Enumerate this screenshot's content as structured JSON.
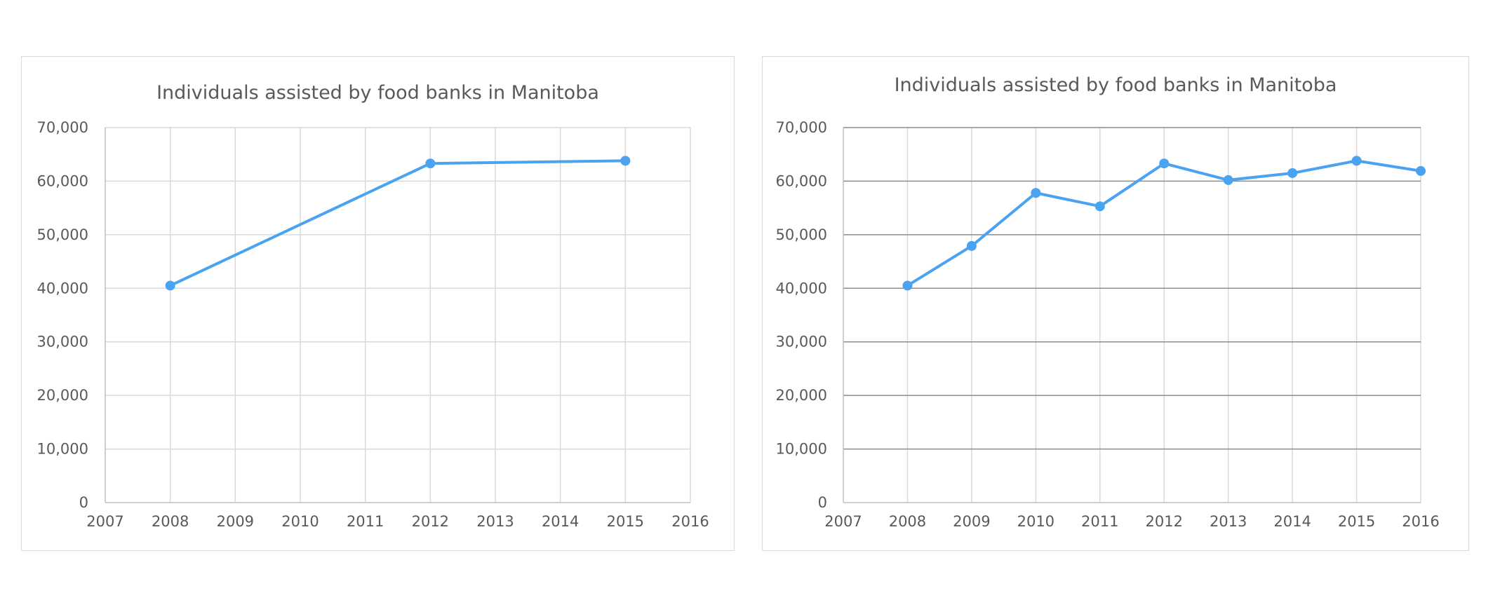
{
  "chart_data": [
    {
      "type": "scatter",
      "title": "Individuals assisted by food banks in Manitoba",
      "xlabel": "",
      "ylabel": "",
      "xlim": [
        2007,
        2016
      ],
      "ylim": [
        0,
        70000
      ],
      "x_ticks": [
        "2007",
        "2008",
        "2009",
        "2010",
        "2011",
        "2012",
        "2013",
        "2014",
        "2015",
        "2016"
      ],
      "y_ticks": [
        "0",
        "10,000",
        "20,000",
        "30,000",
        "40,000",
        "50,000",
        "60,000",
        "70,000"
      ],
      "grid": "both",
      "legend": "none",
      "series": [
        {
          "x": [
            2008,
            2012,
            2015
          ],
          "y": [
            40500,
            63300,
            63800
          ],
          "color": "#4aa3f0"
        }
      ]
    },
    {
      "type": "scatter",
      "title": "Individuals assisted by food banks in Manitoba",
      "xlabel": "",
      "ylabel": "",
      "xlim": [
        2007,
        2016
      ],
      "ylim": [
        0,
        70000
      ],
      "x_ticks": [
        "2007",
        "2008",
        "2009",
        "2010",
        "2011",
        "2012",
        "2013",
        "2014",
        "2015",
        "2016"
      ],
      "y_ticks": [
        "0",
        "10,000",
        "20,000",
        "30,000",
        "40,000",
        "50,000",
        "60,000",
        "70,000"
      ],
      "grid": "both",
      "legend": "none",
      "series": [
        {
          "x": [
            2008,
            2009,
            2010,
            2011,
            2012,
            2013,
            2014,
            2015,
            2016
          ],
          "y": [
            40500,
            47900,
            57800,
            55300,
            63300,
            60200,
            61500,
            63800,
            61900
          ],
          "color": "#4aa3f0"
        }
      ]
    }
  ]
}
